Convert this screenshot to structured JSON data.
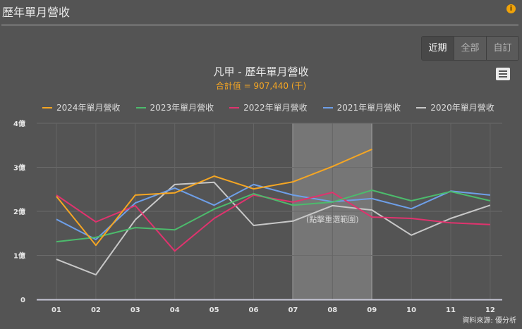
{
  "header": {
    "title": "歷年單月營收",
    "info_icon": "info-icon"
  },
  "range_buttons": [
    {
      "label": "近期",
      "active": true
    },
    {
      "label": "全部",
      "active": false
    },
    {
      "label": "自訂",
      "active": false
    }
  ],
  "chart": {
    "title": "凡甲 - 歷年單月營收",
    "subtitle": "合計值 = 907,440 (千)",
    "menu_icon": "hamburger-menu-icon",
    "selection_hint": "(點擊重選範圍)",
    "source": "資料來源: 優分析"
  },
  "colors": {
    "2024": "#f5a623",
    "2023": "#4cbb6c",
    "2022": "#e0336e",
    "2021": "#6e9fe8",
    "2020": "#c8c8c8",
    "background": "#545454",
    "selection": "#8a8a8a"
  },
  "chart_data": {
    "type": "line",
    "title": "凡甲 - 歷年單月營收",
    "subtitle": "合計值 = 907,440 (千)",
    "xlabel": "",
    "ylabel": "",
    "categories": [
      "01",
      "02",
      "03",
      "04",
      "05",
      "06",
      "07",
      "08",
      "09",
      "10",
      "11",
      "12"
    ],
    "y_ticks": [
      "0",
      "1億",
      "2億",
      "3億",
      "4億"
    ],
    "ylim": [
      0,
      4
    ],
    "unit": "億",
    "grid": true,
    "legend_position": "top",
    "selection_range": [
      "07",
      "09"
    ],
    "series": [
      {
        "name": "2024年單月營收",
        "color": "#f5a623",
        "values": [
          2.34,
          1.23,
          2.37,
          2.42,
          2.8,
          2.51,
          2.67,
          3.02,
          3.41,
          null,
          null,
          null
        ]
      },
      {
        "name": "2023年單月營收",
        "color": "#4cbb6c",
        "values": [
          1.31,
          1.41,
          1.63,
          1.58,
          2.05,
          2.4,
          2.14,
          2.21,
          2.48,
          2.24,
          2.45,
          2.24
        ]
      },
      {
        "name": "2022年單月營收",
        "color": "#e0336e",
        "values": [
          2.37,
          1.76,
          2.13,
          1.1,
          1.84,
          2.37,
          2.21,
          2.43,
          1.87,
          1.84,
          1.74,
          1.7
        ]
      },
      {
        "name": "2021年單月營收",
        "color": "#6e9fe8",
        "values": [
          1.82,
          1.36,
          2.19,
          2.53,
          2.14,
          2.61,
          2.37,
          2.22,
          2.29,
          2.06,
          2.46,
          2.37
        ]
      },
      {
        "name": "2020年單月營收",
        "color": "#c8c8c8",
        "values": [
          0.91,
          0.56,
          1.81,
          2.61,
          2.66,
          1.68,
          1.78,
          2.13,
          2.03,
          1.46,
          1.84,
          2.14
        ]
      }
    ]
  }
}
